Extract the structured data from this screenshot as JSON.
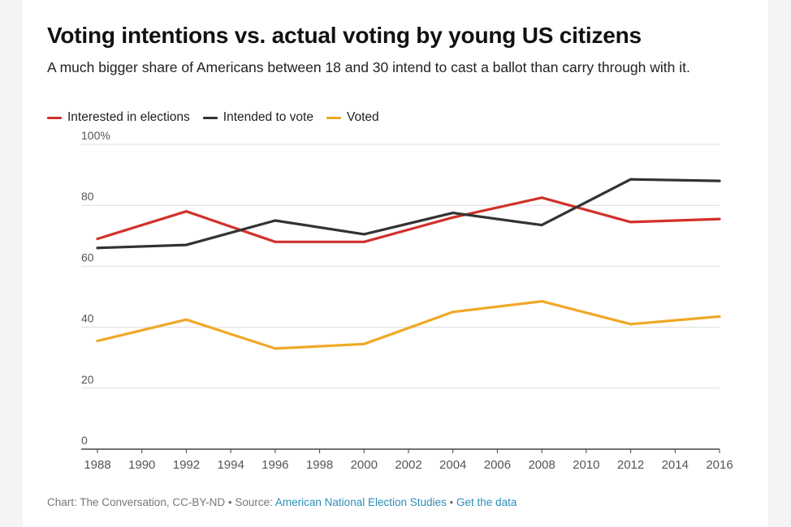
{
  "title": "Voting intentions vs. actual voting by young US citizens",
  "subtitle": "A much bigger share of Americans between 18 and 30 intend to cast a ballot than carry through with it.",
  "footer": {
    "credit": "Chart: The Conversation, CC-BY-ND",
    "separator": "•",
    "source_label": "Source:",
    "source_link": "American National Election Studies",
    "data_link": "Get the data"
  },
  "colors": {
    "interested": "#d1312b",
    "intended": "#333333",
    "voted": "#f0a826",
    "grid": "#dddddd",
    "axis": "#444444",
    "tick_text": "#555555"
  },
  "chart_data": {
    "type": "line",
    "title": "Voting intentions vs. actual voting by young US citizens",
    "xlabel": "",
    "ylabel": "",
    "xlim": [
      1988,
      2016
    ],
    "ylim": [
      0,
      100
    ],
    "x_ticks": [
      "1988",
      "1990",
      "1992",
      "1994",
      "1996",
      "1998",
      "2000",
      "2002",
      "2004",
      "2006",
      "2008",
      "2010",
      "2012",
      "2014",
      "2016"
    ],
    "y_ticks": [
      0,
      20,
      40,
      60,
      80,
      100
    ],
    "y_tick_labels": [
      "0",
      "20",
      "40",
      "60",
      "80",
      "100%"
    ],
    "legend_position": "top-left",
    "grid": true,
    "series": [
      {
        "name": "Interested in elections",
        "color_key": "interested",
        "x": [
          1988,
          1992,
          1996,
          2000,
          2004,
          2008,
          2012,
          2016
        ],
        "values": [
          69,
          78,
          68,
          68,
          76,
          82.5,
          74.5,
          75.5
        ]
      },
      {
        "name": "Intended to vote",
        "color_key": "intended",
        "x": [
          1988,
          1992,
          1996,
          2000,
          2004,
          2008,
          2012,
          2016
        ],
        "values": [
          66,
          67,
          75,
          70.5,
          77.5,
          73.5,
          88.5,
          88
        ]
      },
      {
        "name": "Voted",
        "color_key": "voted",
        "x": [
          1988,
          1992,
          1996,
          2000,
          2004,
          2008,
          2012,
          2016
        ],
        "values": [
          35.5,
          42.5,
          33,
          34.5,
          45,
          48.5,
          41,
          43.5
        ]
      }
    ]
  }
}
